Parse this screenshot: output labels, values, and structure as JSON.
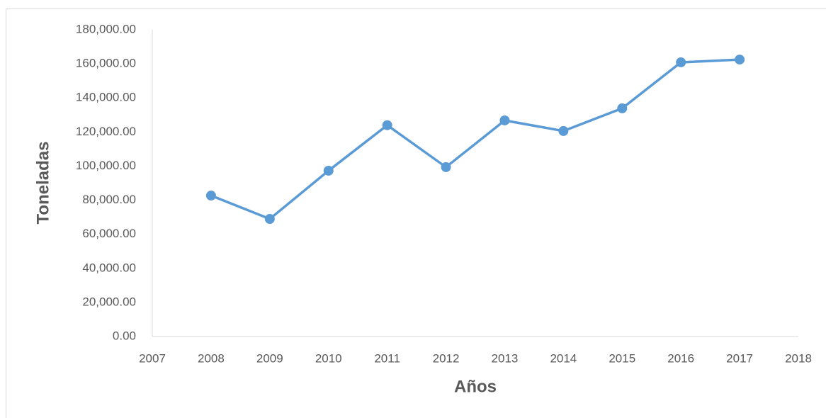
{
  "chart_data": {
    "type": "line",
    "xlabel": "Años",
    "ylabel": "Toneladas",
    "x": [
      2008,
      2009,
      2010,
      2011,
      2012,
      2013,
      2014,
      2015,
      2016,
      2017
    ],
    "series": [
      {
        "name": "Toneladas",
        "color": "#5b9bd5",
        "values": [
          82700,
          69000,
          97300,
          124000,
          99400,
          126800,
          120600,
          133900,
          160900,
          162500
        ]
      }
    ],
    "xlim": [
      2007,
      2018
    ],
    "xticks": [
      2007,
      2008,
      2009,
      2010,
      2011,
      2012,
      2013,
      2014,
      2015,
      2016,
      2017,
      2018
    ],
    "ylim": [
      0,
      180000
    ],
    "yticks": [
      {
        "value": 0,
        "label": "0.00"
      },
      {
        "value": 20000,
        "label": "20,000.00"
      },
      {
        "value": 40000,
        "label": "40,000.00"
      },
      {
        "value": 60000,
        "label": "60,000.00"
      },
      {
        "value": 80000,
        "label": "80,000.00"
      },
      {
        "value": 100000,
        "label": "100,000.00"
      },
      {
        "value": 120000,
        "label": "120,000.00"
      },
      {
        "value": 140000,
        "label": "140,000.00"
      },
      {
        "value": 160000,
        "label": "160,000.00"
      },
      {
        "value": 180000,
        "label": "180,000.00"
      }
    ],
    "grid": false,
    "legend": false
  }
}
